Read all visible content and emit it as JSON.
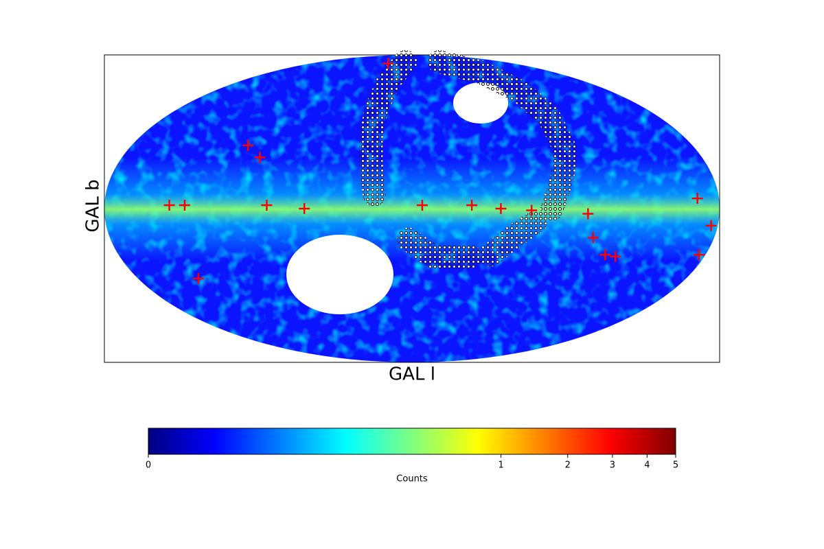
{
  "chart_data": {
    "type": "skymap",
    "xlabel": "GAL l",
    "ylabel": "GAL b",
    "xlim": [
      180,
      -180
    ],
    "ylim": [
      -90,
      90
    ],
    "sources": {
      "color": "#ff0000",
      "x": [
        14,
        96,
        89,
        142,
        133,
        85,
        63,
        -6,
        -35,
        -52,
        -70,
        -103,
        -106,
        -113,
        -119,
        -167,
        -175,
        -168,
        125
      ],
      "y": [
        85,
        37,
        30,
        2,
        2,
        2,
        0,
        2,
        2,
        0,
        -1,
        -3,
        -17,
        -27,
        -28,
        6,
        -10,
        -27,
        -41
      ]
    },
    "footprints": [
      {
        "color": "#000000",
        "x": [
          4,
          14,
          21,
          24,
          24,
          22
        ],
        "y": [
          86,
          74,
          58,
          42,
          26,
          8
        ]
      },
      {
        "color": "#000000",
        "x": [
          -16,
          -40,
          -64,
          -80,
          -90,
          -88,
          -82
        ],
        "y": [
          86,
          80,
          68,
          54,
          34,
          18,
          0
        ]
      },
      {
        "color": "#000000",
        "x": [
          2,
          -12,
          -34
        ],
        "y": [
          -18,
          -28,
          -28
        ]
      },
      {
        "color": "#000000",
        "x": [
          -46,
          -60,
          -72
        ],
        "y": [
          -27,
          -16,
          -8
        ]
      }
    ],
    "colorbar": {
      "label": "Counts",
      "colormap": "jet",
      "scale": "power",
      "power": 0.25,
      "lim": [
        0,
        5
      ],
      "ticks": [
        0,
        1,
        2,
        3,
        4,
        5
      ]
    }
  }
}
